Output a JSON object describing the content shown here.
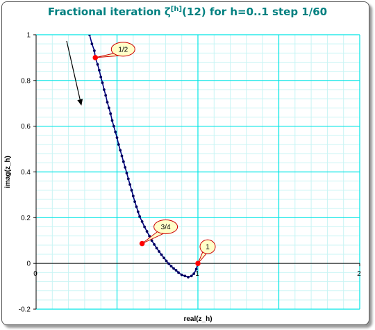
{
  "chart_data": {
    "type": "line",
    "title": {
      "prefix": "Fractional iteration ",
      "func": "ζ",
      "sup": "[h]",
      "suffix": "(12) for h=0..1 step 1/60"
    },
    "xlabel": "real(z_h)",
    "ylabel": "imag(z_h)",
    "xlim": [
      0,
      2
    ],
    "ylim": [
      -0.2,
      1
    ],
    "x_ticks": [
      "0",
      "1",
      "2"
    ],
    "y_ticks": [
      "-0.2",
      "0",
      "0.2",
      "0.4",
      "0.6",
      "0.8",
      "1"
    ],
    "grid": "major and minor",
    "series": [
      {
        "color": "#000080",
        "marker_color": "#000060",
        "points": [
          [
            0.33,
            1.0
          ],
          [
            0.345,
            0.96
          ],
          [
            0.36,
            0.93
          ],
          [
            0.366,
            0.9
          ],
          [
            0.38,
            0.87
          ],
          [
            0.39,
            0.845
          ],
          [
            0.4,
            0.815
          ],
          [
            0.41,
            0.79
          ],
          [
            0.42,
            0.76
          ],
          [
            0.43,
            0.735
          ],
          [
            0.44,
            0.705
          ],
          [
            0.45,
            0.68
          ],
          [
            0.46,
            0.655
          ],
          [
            0.47,
            0.625
          ],
          [
            0.48,
            0.6
          ],
          [
            0.49,
            0.575
          ],
          [
            0.5,
            0.55
          ],
          [
            0.51,
            0.52
          ],
          [
            0.52,
            0.495
          ],
          [
            0.53,
            0.47
          ],
          [
            0.54,
            0.445
          ],
          [
            0.55,
            0.42
          ],
          [
            0.56,
            0.395
          ],
          [
            0.57,
            0.37
          ],
          [
            0.58,
            0.345
          ],
          [
            0.59,
            0.32
          ],
          [
            0.6,
            0.295
          ],
          [
            0.61,
            0.27
          ],
          [
            0.62,
            0.248
          ],
          [
            0.63,
            0.226
          ],
          [
            0.64,
            0.205
          ],
          [
            0.655,
            0.183
          ],
          [
            0.67,
            0.16
          ],
          [
            0.685,
            0.14
          ],
          [
            0.7,
            0.12
          ],
          [
            0.715,
            0.1
          ],
          [
            0.73,
            0.083
          ],
          [
            0.745,
            0.067
          ],
          [
            0.76,
            0.052
          ],
          [
            0.775,
            0.038
          ],
          [
            0.79,
            0.024
          ],
          [
            0.805,
            0.011
          ],
          [
            0.82,
            -0.001
          ],
          [
            0.835,
            -0.012
          ],
          [
            0.85,
            -0.022
          ],
          [
            0.865,
            -0.03
          ],
          [
            0.88,
            -0.04
          ],
          [
            0.9,
            -0.05
          ],
          [
            0.92,
            -0.055
          ],
          [
            0.94,
            -0.06
          ],
          [
            0.96,
            -0.055
          ],
          [
            0.975,
            -0.045
          ],
          [
            0.99,
            -0.025
          ],
          [
            1.0,
            0.0
          ]
        ]
      }
    ],
    "highlighted": [
      {
        "label": "1/2",
        "x": 0.366,
        "y": 0.9
      },
      {
        "label": "3/4",
        "x": 0.655,
        "y": 0.087
      },
      {
        "label": "1",
        "x": 1.0,
        "y": 0.0
      }
    ],
    "colors": {
      "title": "#008080",
      "major_grid": "#00e5e5",
      "minor_grid": "#c8f4f4",
      "highlight": "#ff0000",
      "callout_fill": "#ffffc8",
      "callout_stroke": "#cc0000"
    }
  }
}
